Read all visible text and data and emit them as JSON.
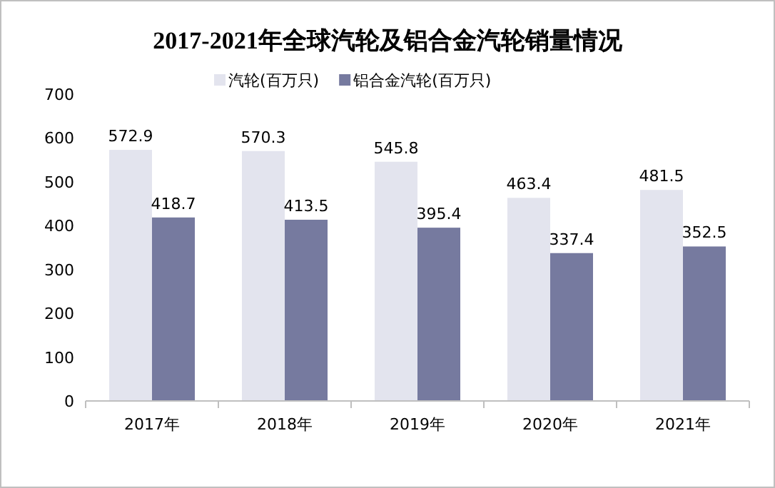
{
  "chart_data": {
    "type": "bar",
    "title": "2017-2021年全球汽轮及铝合金汽轮销量情况",
    "categories": [
      "2017年",
      "2018年",
      "2019年",
      "2020年",
      "2021年"
    ],
    "series": [
      {
        "name": "汽轮(百万只)",
        "color": "#e3e4ee",
        "values": [
          572.9,
          570.3,
          545.8,
          463.4,
          481.5
        ]
      },
      {
        "name": "铝合金汽轮(百万只)",
        "color": "#767a9f",
        "values": [
          418.7,
          413.5,
          395.4,
          337.4,
          352.5
        ]
      }
    ],
    "ylim": [
      0,
      700
    ],
    "yticks": [
      0,
      100,
      200,
      300,
      400,
      500,
      600,
      700
    ],
    "data_labels": true,
    "legend": "top",
    "grid": false
  }
}
